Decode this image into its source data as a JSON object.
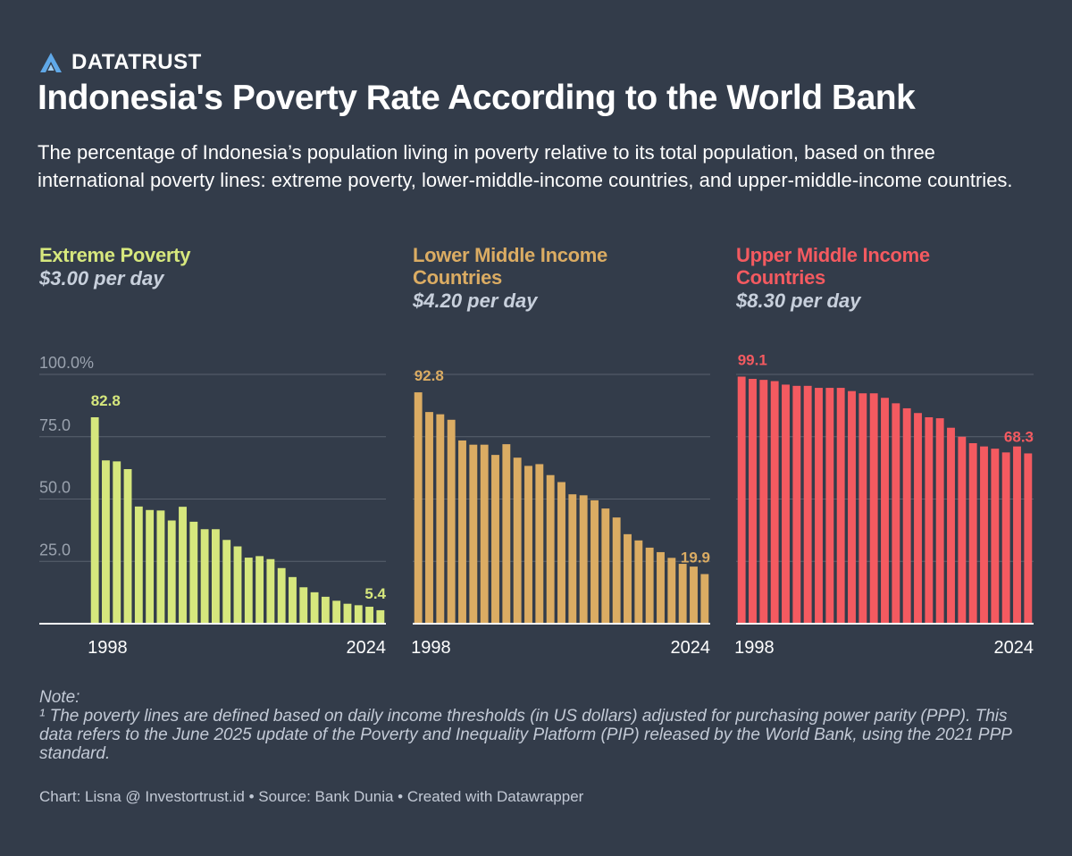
{
  "brand": {
    "name": "DATATRUST",
    "logo_icon": "a-triangle-logo-icon",
    "logo_color": "#5fa8e8"
  },
  "title": "Indonesia's Poverty Rate According to the World Bank",
  "subtitle": "The percentage of Indonesia’s population living in poverty relative to its total population, based on three international poverty lines: extreme poverty, lower-middle-income countries, and upper-middle-income countries.",
  "panels": [
    {
      "title": "Extreme Poverty",
      "subtitle": "$3.00 per day",
      "color": "#d6e77d"
    },
    {
      "title": "Lower Middle Income Countries",
      "subtitle": "$4.20 per day",
      "color": "#dbac63"
    },
    {
      "title": "Upper Middle Income Countries",
      "subtitle": "$8.30 per day",
      "color": "#f45a60"
    }
  ],
  "chart_data": [
    {
      "type": "bar",
      "title": "Extreme Poverty",
      "subtitle": "$3.00 per day",
      "color": "#d6e77d",
      "categories": [
        1998,
        1999,
        2000,
        2001,
        2002,
        2003,
        2004,
        2005,
        2006,
        2007,
        2008,
        2009,
        2010,
        2011,
        2012,
        2013,
        2014,
        2015,
        2016,
        2017,
        2018,
        2019,
        2020,
        2021,
        2022,
        2023,
        2024
      ],
      "values": [
        82.8,
        65.5,
        65.1,
        62.0,
        47.0,
        45.6,
        45.4,
        41.4,
        46.9,
        40.9,
        37.9,
        37.9,
        33.6,
        31.0,
        26.5,
        27.1,
        25.9,
        22.3,
        18.7,
        14.6,
        12.6,
        10.8,
        9.2,
        8.0,
        7.4,
        6.8,
        5.4
      ],
      "ylim": [
        0,
        100
      ],
      "yticks": [
        "100.0%",
        "75.0",
        "50.0",
        "25.0"
      ],
      "ytick_values": [
        100,
        75,
        50,
        25
      ],
      "xticks": [
        "1998",
        "2024"
      ],
      "data_labels": [
        {
          "index": 0,
          "label": "82.8"
        },
        {
          "index": 26,
          "label": "5.4"
        }
      ]
    },
    {
      "type": "bar",
      "title": "Lower Middle Income Countries",
      "subtitle": "$4.20 per day",
      "color": "#dbac63",
      "categories": [
        1998,
        1999,
        2000,
        2001,
        2002,
        2003,
        2004,
        2005,
        2006,
        2007,
        2008,
        2009,
        2010,
        2011,
        2012,
        2013,
        2014,
        2015,
        2016,
        2017,
        2018,
        2019,
        2020,
        2021,
        2022,
        2023,
        2024
      ],
      "values": [
        92.8,
        84.9,
        84.0,
        81.8,
        73.5,
        71.8,
        71.8,
        67.7,
        72.0,
        66.6,
        63.3,
        64.0,
        59.6,
        56.8,
        51.9,
        51.5,
        49.5,
        46.2,
        42.6,
        35.9,
        33.4,
        30.5,
        28.7,
        26.4,
        24.0,
        22.9,
        19.9
      ],
      "ylim": [
        0,
        100
      ],
      "xticks": [
        "1998",
        "2024"
      ],
      "data_labels": [
        {
          "index": 0,
          "label": "92.8"
        },
        {
          "index": 26,
          "label": "19.9"
        }
      ]
    },
    {
      "type": "bar",
      "title": "Upper Middle Income Countries",
      "subtitle": "$8.30 per day",
      "color": "#f45a60",
      "categories": [
        1998,
        1999,
        2000,
        2001,
        2002,
        2003,
        2004,
        2005,
        2006,
        2007,
        2008,
        2009,
        2010,
        2011,
        2012,
        2013,
        2014,
        2015,
        2016,
        2017,
        2018,
        2019,
        2020,
        2021,
        2022,
        2023,
        2024
      ],
      "values": [
        99.1,
        98.2,
        97.8,
        97.3,
        95.9,
        95.4,
        95.4,
        94.6,
        94.6,
        94.6,
        93.3,
        92.4,
        92.4,
        90.6,
        88.4,
        86.4,
        84.5,
        82.8,
        82.4,
        78.6,
        75.0,
        72.4,
        71.1,
        70.2,
        68.7,
        71.1,
        68.3
      ],
      "ylim": [
        0,
        100
      ],
      "xticks": [
        "1998",
        "2024"
      ],
      "data_labels": [
        {
          "index": 0,
          "label": "99.1"
        },
        {
          "index": 26,
          "label": "68.3"
        }
      ]
    }
  ],
  "note": {
    "heading": "Note:",
    "text": "¹ The poverty lines are defined based on daily income thresholds (in US dollars) adjusted for purchasing power parity (PPP). This data refers to the June 2025 update of the Poverty and Inequality Platform (PIP) released by the World Bank, using the 2021 PPP standard."
  },
  "footer": "Chart: Lisna @ Investortrust.id • Source: Bank Dunia • Created with Datawrapper"
}
